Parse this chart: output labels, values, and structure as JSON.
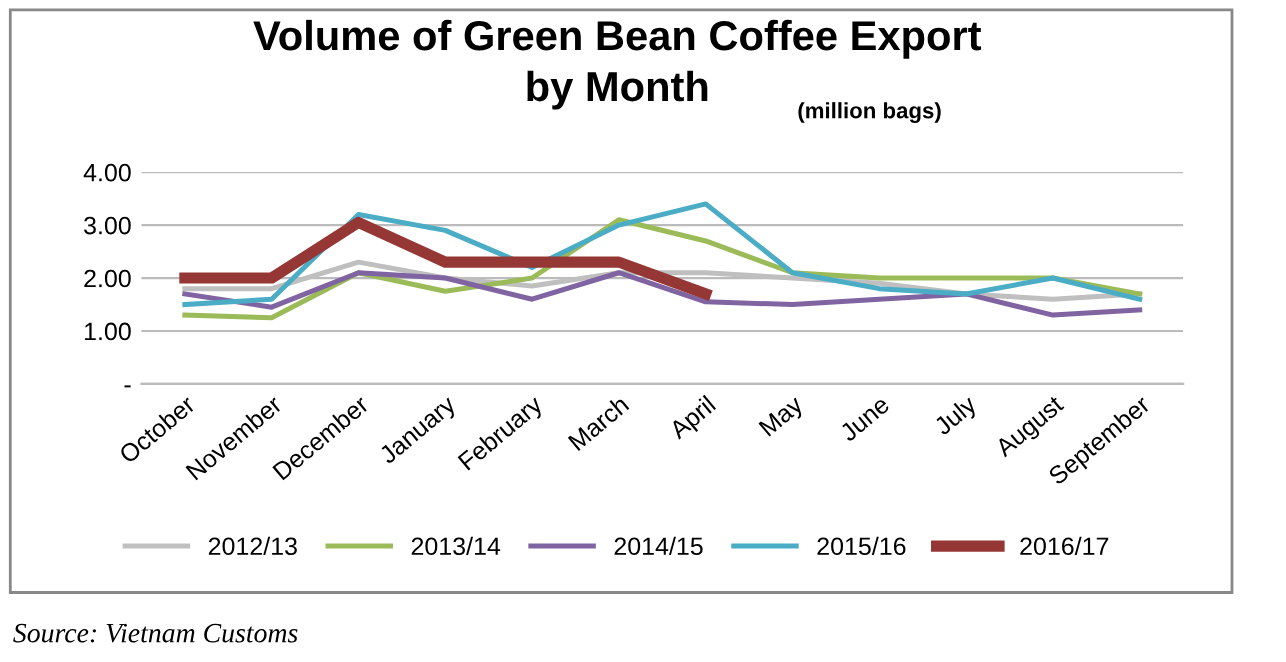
{
  "chart_data": {
    "type": "line",
    "title": "Volume of Green Bean Coffee Export\nby Month",
    "subtitle": "(million bags)",
    "categories": [
      "October",
      "November",
      "December",
      "January",
      "February",
      "March",
      "April",
      "May",
      "June",
      "July",
      "August",
      "September"
    ],
    "series": [
      {
        "name": "2012/13",
        "color": "#bfbfbf",
        "values": [
          1.8,
          1.8,
          2.3,
          2.0,
          1.85,
          2.1,
          2.1,
          2.0,
          1.9,
          1.7,
          1.6,
          1.7
        ]
      },
      {
        "name": "2013/14",
        "color": "#9bbb59",
        "values": [
          1.3,
          1.25,
          2.1,
          1.75,
          2.0,
          3.1,
          2.7,
          2.1,
          2.0,
          2.0,
          2.0,
          1.7
        ]
      },
      {
        "name": "2014/15",
        "color": "#8064a2",
        "values": [
          1.7,
          1.45,
          2.1,
          2.0,
          1.6,
          2.1,
          1.55,
          1.5,
          1.6,
          1.7,
          1.3,
          1.4
        ]
      },
      {
        "name": "2015/16",
        "color": "#4bacc6",
        "values": [
          1.5,
          1.6,
          3.2,
          2.9,
          2.2,
          3.0,
          3.4,
          2.1,
          1.8,
          1.7,
          2.0,
          1.6
        ]
      },
      {
        "name": "2016/17",
        "color": "#953735",
        "values": [
          2.0,
          2.0,
          3.05,
          2.3,
          2.3,
          2.3,
          1.7,
          null,
          null,
          null,
          null,
          null
        ]
      }
    ],
    "ylim": [
      0,
      4
    ],
    "yticks": [
      {
        "value": 0,
        "label": "-"
      },
      {
        "value": 1,
        "label": "1.00"
      },
      {
        "value": 2,
        "label": "2.00"
      },
      {
        "value": 3,
        "label": "3.00"
      },
      {
        "value": 4,
        "label": "4.00"
      }
    ],
    "grid": "y",
    "legend": "bottom",
    "marker": "none",
    "line_style": "solid",
    "annotations": [
      "Source: Vietnam Customs"
    ]
  }
}
